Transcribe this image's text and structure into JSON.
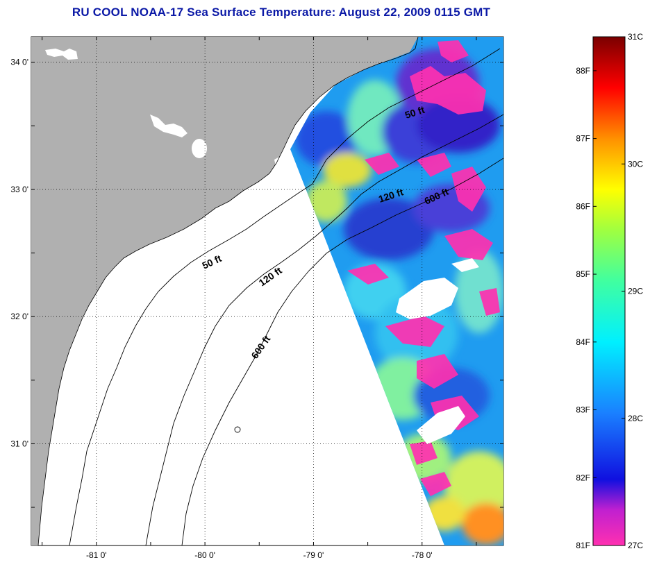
{
  "title": "RU COOL  NOAA-17  Sea Surface Temperature:  August 22, 2009 0115 GMT",
  "map": {
    "lon_range": [
      -81.6,
      -77.25
    ],
    "lat_range": [
      30.2,
      34.2
    ],
    "lon_ticks": [
      {
        "value": -81,
        "label": "-81 0'"
      },
      {
        "value": -80,
        "label": "-80 0'"
      },
      {
        "value": -79,
        "label": "-79 0'"
      },
      {
        "value": -78,
        "label": "-78 0'"
      }
    ],
    "lat_ticks": [
      {
        "value": 34,
        "label": "34 0'"
      },
      {
        "value": 33,
        "label": "33 0'"
      },
      {
        "value": 32,
        "label": "32 0'"
      },
      {
        "value": 31,
        "label": "31 0'"
      }
    ],
    "contour_labels": [
      {
        "label": "50 ft"
      },
      {
        "label": "120 ft"
      },
      {
        "label": "600 ft"
      },
      {
        "label": "50 ft"
      },
      {
        "label": "120 ft"
      },
      {
        "label": "600 ft"
      }
    ],
    "colors": {
      "land": "#b0b0b0",
      "background": "#ffffff",
      "title": "#0a18a6"
    }
  },
  "colorbar": {
    "fahrenheit_labels": [
      "88F",
      "87F",
      "86F",
      "85F",
      "84F",
      "83F",
      "82F",
      "81F"
    ],
    "celsius_labels": [
      "31C",
      "30C",
      "29C",
      "28C",
      "27C"
    ],
    "range_f": [
      81,
      88.5
    ],
    "range_c": [
      27,
      31
    ]
  }
}
